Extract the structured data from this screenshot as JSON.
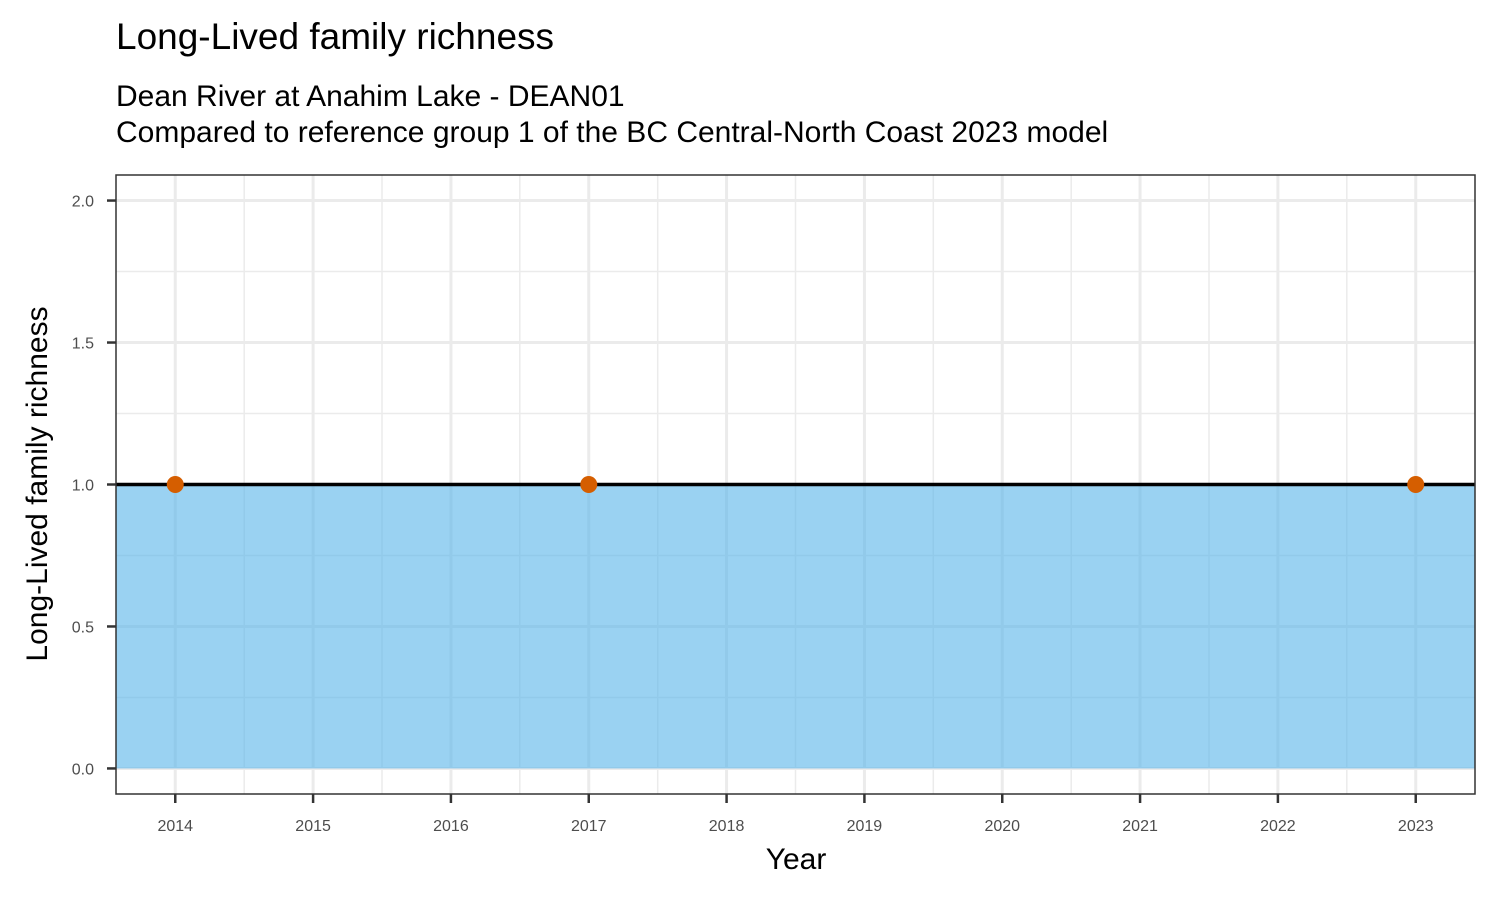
{
  "chart_data": {
    "type": "line",
    "title": "Long-Lived family richness",
    "subtitle_lines": [
      "Dean River at Anahim Lake - DEAN01",
      "Compared to reference group 1 of the BC Central-North Coast 2023 model"
    ],
    "xlabel": "Year",
    "ylabel": "Long-Lived family richness",
    "xlim": [
      2013.57,
      2023.43
    ],
    "ylim": [
      -0.09,
      2.09
    ],
    "x_ticks": [
      2014,
      2015,
      2016,
      2017,
      2018,
      2019,
      2020,
      2021,
      2022,
      2023
    ],
    "y_ticks": [
      0.0,
      0.5,
      1.0,
      1.5,
      2.0
    ],
    "y_tick_labels": [
      "0.0",
      "0.5",
      "1.0",
      "1.5",
      "2.0"
    ],
    "reference_band": {
      "lower": 0.0,
      "upper": 1.0,
      "color": "#56B4E9"
    },
    "reference_line": {
      "value": 1.0,
      "color": "#000000"
    },
    "points": [
      {
        "x": 2014,
        "y": 1.0
      },
      {
        "x": 2017,
        "y": 1.0
      },
      {
        "x": 2023,
        "y": 1.0
      }
    ],
    "point_color": "#D55E00",
    "grid": true
  }
}
